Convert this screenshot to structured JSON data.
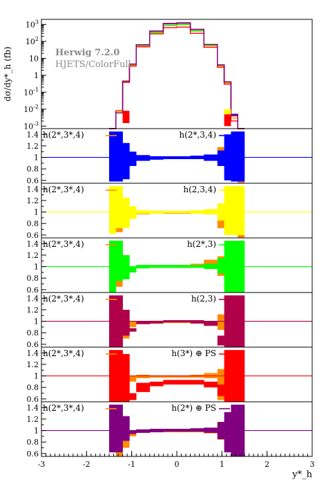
{
  "colors": {
    "blue": "#0000ff",
    "yellow": "#ffff00",
    "green": "#00ff00",
    "crimson": "#b0004a",
    "red": "#ff0000",
    "purple": "#800080",
    "orange": "#ff8c00",
    "ratio_line_ref": "#ff8c00"
  },
  "chart_data": {
    "type": "line",
    "generator_label": "Herwig 7.2.0",
    "setup_label": "HJETS/ColorFull",
    "xlabel": "y*_h",
    "xlim": [
      -3,
      3
    ],
    "x_ticks": [
      "-3",
      "-2",
      "-1",
      "0",
      "1",
      "2",
      "3"
    ],
    "bin_edges": [
      -1.5,
      -1.35,
      -1.2,
      -1.05,
      -0.9,
      -0.6,
      -0.3,
      0.0,
      0.3,
      0.6,
      0.9,
      1.05,
      1.2,
      1.35,
      1.5
    ],
    "main": {
      "ylabel": "dσ/dy*_h (fb)",
      "log_ylim": [
        -3.15,
        3.3
      ],
      "y_ticks": [
        "10^3",
        "10^2",
        "10",
        "1",
        "10^-1",
        "10^-2",
        "10^-3"
      ],
      "series": [
        {
          "name": "h(2*,3,4)",
          "color_key": "blue",
          "values": [
            0.0006,
            0.006,
            0.45,
            4.5,
            60,
            350,
            900,
            1000,
            420,
            60,
            4,
            0.4,
            0.005,
            0.0006
          ]
        },
        {
          "name": "h(2*,3*,4)",
          "color_key": "orange",
          "values": [
            0.0006,
            0.006,
            0.4,
            4.0,
            55,
            320,
            850,
            950,
            400,
            55,
            3.5,
            0.35,
            0.003,
            0.0006
          ]
        },
        {
          "name": "h(2,3,4)",
          "color_key": "yellow",
          "values": [
            0.0006,
            0.007,
            0.42,
            4.3,
            58,
            340,
            880,
            980,
            410,
            58,
            3.8,
            0.38,
            0.004,
            0.0006
          ]
        },
        {
          "name": "h(2*,3)",
          "color_key": "green",
          "values": [
            0.0006,
            0.006,
            0.44,
            4.4,
            59,
            345,
            890,
            990,
            415,
            59,
            3.9,
            0.39,
            0.0045,
            0.0006
          ]
        },
        {
          "name": "h(2,3)",
          "color_key": "crimson",
          "values": [
            0.0006,
            0.006,
            0.45,
            4.5,
            62,
            400,
            1100,
            1200,
            500,
            65,
            4,
            0.4,
            0.004,
            0.0006
          ]
        },
        {
          "name": "h(3*) ⊕ PS",
          "color_key": "red",
          "values": [
            0.0006,
            0.008,
            0.38,
            3.5,
            48,
            280,
            650,
            700,
            300,
            45,
            3.0,
            0.3,
            0.002,
            0.0006
          ]
        },
        {
          "name": "h(2*) ⊕ PS",
          "color_key": "purple",
          "values": [
            0.0006,
            0.006,
            0.45,
            4.6,
            63,
            410,
            1150,
            1250,
            520,
            66,
            4.1,
            0.41,
            0.0045,
            0.0006
          ]
        }
      ]
    },
    "ratio_panels": [
      {
        "ref_label": "h(2*,3*,4)",
        "label": "h(2*,3,4)",
        "color_key": "blue",
        "values": [
          1.0,
          1.0,
          1.0,
          1.0,
          1.0,
          0.98,
          0.98,
          0.98,
          0.99,
          1.0,
          0.95,
          1.0,
          1.0,
          1.0
        ],
        "band_lo": [
          0.58,
          0.58,
          0.62,
          0.85,
          0.94,
          0.96,
          0.97,
          0.97,
          0.97,
          0.94,
          0.85,
          0.6,
          0.58,
          0.58
        ],
        "band_hi": [
          1.45,
          1.45,
          1.25,
          1.1,
          1.04,
          1.02,
          1.02,
          1.02,
          1.03,
          1.05,
          1.12,
          1.4,
          1.45,
          1.45
        ],
        "ref_lo": [
          1.0,
          0.64,
          0.85,
          0.9,
          0.96,
          0.97,
          0.97,
          0.97,
          0.97,
          0.96,
          0.85,
          1.0,
          1.0,
          0.52
        ],
        "ref_hi": [
          1.0,
          1.0,
          1.05,
          1.0,
          1.02,
          1.01,
          1.01,
          1.01,
          1.02,
          1.04,
          1.18,
          1.0,
          1.0,
          1.0
        ]
      },
      {
        "ref_label": "h(2*,3*,4)",
        "label": "h(2,3,4)",
        "color_key": "yellow",
        "values": [
          1.0,
          1.0,
          1.0,
          1.0,
          1.0,
          1.0,
          1.0,
          1.0,
          1.0,
          1.0,
          1.0,
          1.0,
          1.0,
          1.0
        ],
        "band_lo": [
          0.62,
          0.72,
          0.72,
          0.88,
          0.97,
          0.97,
          0.98,
          0.98,
          0.97,
          0.96,
          0.85,
          0.6,
          0.6,
          0.6
        ],
        "band_hi": [
          1.45,
          1.45,
          1.25,
          1.1,
          1.03,
          1.02,
          1.02,
          1.02,
          1.03,
          1.05,
          1.15,
          1.45,
          1.45,
          1.45
        ],
        "ref_lo": [
          1.0,
          0.65,
          0.85,
          0.9,
          0.96,
          0.97,
          0.97,
          0.97,
          0.97,
          0.96,
          0.72,
          0.75,
          1.0,
          0.52
        ],
        "ref_hi": [
          1.0,
          0.85,
          1.05,
          1.0,
          1.02,
          1.01,
          1.01,
          1.01,
          1.02,
          1.04,
          1.08,
          1.0,
          1.0,
          1.0
        ]
      },
      {
        "ref_label": "h(2*,3*,4)",
        "label": "h(2*,3)",
        "color_key": "green",
        "values": [
          1.0,
          1.0,
          1.0,
          1.0,
          1.0,
          1.0,
          1.0,
          1.0,
          1.0,
          1.0,
          1.0,
          1.0,
          1.0,
          1.0
        ],
        "band_lo": [
          0.52,
          0.75,
          0.78,
          0.9,
          0.97,
          0.98,
          0.98,
          0.98,
          0.98,
          0.96,
          0.88,
          0.52,
          0.55,
          0.55
        ],
        "band_hi": [
          1.45,
          1.45,
          1.2,
          1.0,
          1.03,
          1.03,
          1.03,
          1.03,
          1.03,
          1.05,
          1.15,
          1.45,
          1.45,
          1.45
        ],
        "ref_lo": [
          1.0,
          0.65,
          0.85,
          0.9,
          0.97,
          0.98,
          0.98,
          0.98,
          0.98,
          0.96,
          0.84,
          0.75,
          1.0,
          0.52
        ],
        "ref_hi": [
          1.0,
          1.0,
          1.0,
          1.0,
          1.02,
          1.02,
          1.02,
          1.02,
          1.05,
          1.12,
          1.18,
          1.0,
          1.0,
          1.0
        ]
      },
      {
        "ref_label": "h(2*,3*,4)",
        "label": "h(2,3)",
        "color_key": "crimson",
        "values": [
          1.0,
          1.0,
          1.0,
          1.0,
          1.0,
          1.0,
          1.0,
          1.0,
          1.0,
          1.0,
          1.0,
          1.0,
          1.0,
          1.0
        ],
        "band_lo": [
          0.52,
          0.52,
          0.75,
          0.82,
          0.95,
          0.96,
          0.98,
          0.98,
          0.96,
          0.92,
          0.58,
          0.52,
          0.55,
          0.55
        ],
        "band_hi": [
          1.45,
          1.45,
          1.2,
          0.88,
          1.0,
          1.0,
          1.02,
          1.02,
          1.02,
          1.0,
          0.75,
          1.45,
          1.45,
          1.45
        ],
        "ref_lo": [
          1.0,
          0.7,
          0.7,
          0.9,
          0.96,
          0.97,
          0.97,
          0.97,
          0.97,
          0.94,
          0.85,
          0.75,
          1.0,
          0.52
        ],
        "ref_hi": [
          1.0,
          1.0,
          1.0,
          1.0,
          1.0,
          1.01,
          1.01,
          1.01,
          1.01,
          1.0,
          1.12,
          1.0,
          1.0,
          1.0
        ]
      },
      {
        "ref_label": "h(2*,3*,4)",
        "label": "h(3*) ⊕ PS",
        "color_key": "red",
        "values": [
          1.0,
          1.0,
          1.0,
          1.0,
          1.0,
          1.0,
          1.0,
          1.0,
          1.0,
          1.0,
          1.0,
          1.0,
          1.0,
          1.0
        ],
        "band_lo": [
          0.55,
          0.55,
          0.55,
          0.58,
          0.72,
          0.82,
          0.85,
          0.85,
          0.85,
          0.8,
          0.65,
          0.55,
          0.55,
          0.55
        ],
        "band_hi": [
          1.45,
          1.45,
          1.38,
          0.7,
          0.88,
          0.9,
          0.93,
          0.93,
          0.93,
          0.9,
          0.85,
          1.45,
          1.45,
          1.45
        ],
        "ref_lo": [
          1.0,
          0.7,
          0.8,
          0.9,
          0.96,
          0.97,
          0.97,
          0.97,
          0.97,
          0.96,
          0.58,
          0.75,
          1.0,
          0.52
        ],
        "ref_hi": [
          1.0,
          1.0,
          1.05,
          1.0,
          1.02,
          1.01,
          1.01,
          1.01,
          1.02,
          1.05,
          1.12,
          1.0,
          1.0,
          1.0
        ]
      },
      {
        "ref_label": "h(2*,3*,4)",
        "label": "h(2*) ⊕ PS",
        "color_key": "purple",
        "values": [
          1.0,
          1.0,
          1.0,
          1.0,
          1.0,
          1.0,
          1.0,
          1.0,
          1.0,
          1.0,
          1.0,
          1.0,
          1.0,
          1.0
        ],
        "band_lo": [
          0.62,
          0.62,
          0.82,
          0.94,
          0.96,
          0.97,
          0.98,
          0.98,
          0.98,
          0.96,
          0.85,
          0.62,
          0.55,
          0.55
        ],
        "band_hi": [
          1.45,
          1.45,
          1.25,
          1.0,
          1.02,
          1.03,
          1.03,
          1.03,
          1.04,
          1.05,
          1.15,
          1.32,
          1.45,
          1.45
        ],
        "ref_lo": [
          1.0,
          0.55,
          0.7,
          0.9,
          0.96,
          0.97,
          0.97,
          0.97,
          0.97,
          0.95,
          0.84,
          0.75,
          1.0,
          0.52
        ],
        "ref_hi": [
          1.0,
          1.0,
          1.0,
          1.0,
          1.02,
          1.02,
          1.02,
          1.02,
          1.03,
          1.05,
          1.15,
          1.0,
          1.0,
          1.0
        ]
      }
    ],
    "ratio_ylim": [
      0.55,
      1.5
    ],
    "ratio_y_ticks": [
      "1.4",
      "1.2",
      "1",
      "0.8",
      "0.6"
    ]
  }
}
